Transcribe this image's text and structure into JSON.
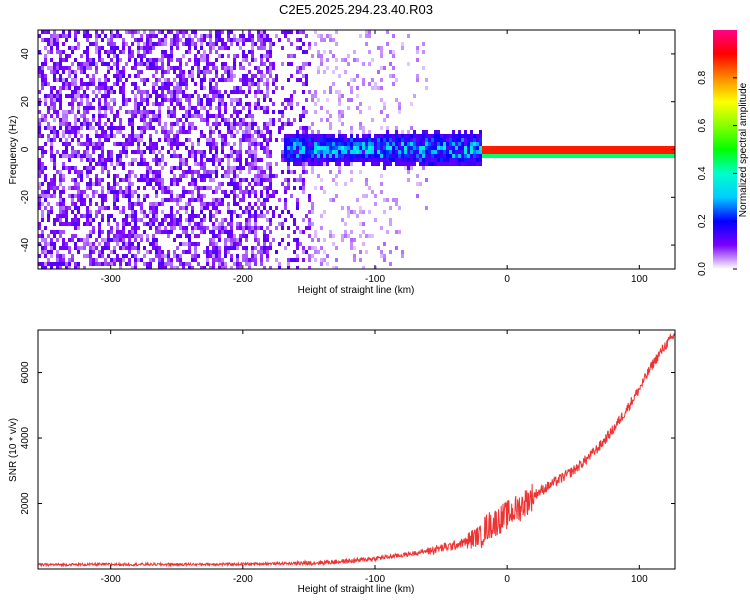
{
  "title": "C2E5.2025.294.23.40.R03",
  "chart_data": [
    {
      "type": "heatmap",
      "title": "C2E5.2025.294.23.40.R03",
      "xlabel": "Height of straight line (km)",
      "ylabel": "Frequency (Hz)",
      "xlim": [
        -355,
        127
      ],
      "ylim": [
        -50,
        50
      ],
      "xticks": [
        -300,
        -200,
        -100,
        0,
        100
      ],
      "yticks": [
        -40,
        -20,
        0,
        20,
        40
      ],
      "colorbar": {
        "label": "Normalized spectral amplitude",
        "range": [
          0,
          1
        ],
        "ticks": [
          0.0,
          0.2,
          0.4,
          0.6,
          0.8
        ]
      },
      "features": [
        {
          "x_range": [
            -355,
            -150
          ],
          "freq_range": [
            -50,
            50
          ],
          "amplitude": 0.1,
          "description": "broadband noise"
        },
        {
          "x_range": [
            -170,
            -20
          ],
          "freq_center": 1,
          "freq_spread": 6,
          "amplitude": 0.3
        },
        {
          "x_range": [
            -20,
            127
          ],
          "freq_center": 0.5,
          "amplitude": 0.9
        }
      ]
    },
    {
      "type": "line",
      "xlabel": "Height of straight line (km)",
      "ylabel": "SNR (10 * v/v)",
      "xlim": [
        -355,
        127
      ],
      "ylim": [
        0,
        7300
      ],
      "xticks": [
        -300,
        -200,
        -100,
        0,
        100
      ],
      "yticks": [
        2000,
        4000,
        6000
      ],
      "series": [
        {
          "color": "#ee3333",
          "x": [
            -355,
            -300,
            -250,
            -200,
            -150,
            -120,
            -100,
            -80,
            -60,
            -40,
            -30,
            -20,
            -15,
            -10,
            0,
            10,
            20,
            30,
            40,
            50,
            60,
            70,
            80,
            90,
            100,
            110,
            120,
            127
          ],
          "y": [
            130,
            140,
            140,
            150,
            180,
            240,
            320,
            420,
            550,
            720,
            850,
            1050,
            1300,
            1400,
            1650,
            1900,
            2250,
            2500,
            2750,
            3000,
            3350,
            3750,
            4250,
            4850,
            5500,
            6250,
            6850,
            7150
          ]
        }
      ]
    }
  ]
}
